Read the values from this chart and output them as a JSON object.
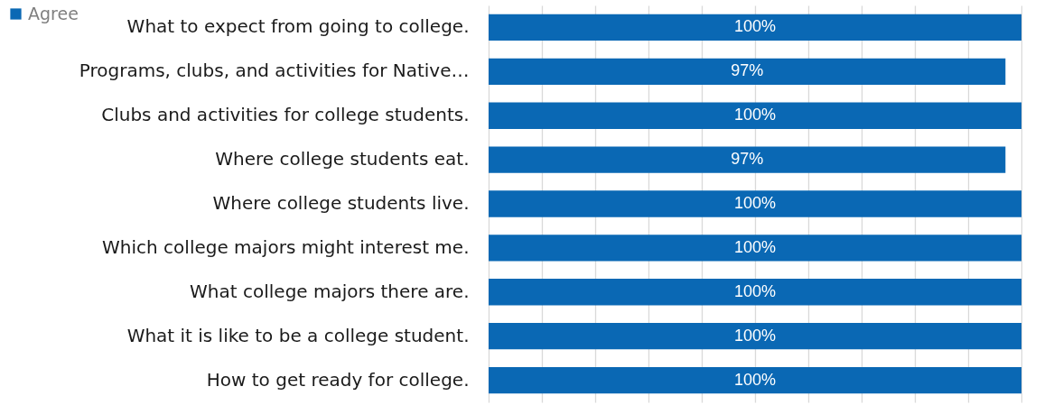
{
  "chart_data": {
    "type": "bar",
    "orientation": "horizontal",
    "categories": [
      "What to expect from going to college.",
      "Programs, clubs, and activities for Native…",
      "Clubs and activities for college students.",
      "Where college students eat.",
      "Where college students live.",
      "Which college majors might interest me.",
      "What college majors there are.",
      "What it is like to be a college student.",
      "How to get ready for college."
    ],
    "series": [
      {
        "name": "Agree",
        "color": "#0a68b4",
        "values": [
          100,
          97,
          100,
          97,
          100,
          100,
          100,
          100,
          100
        ],
        "value_labels": [
          "100%",
          "97%",
          "100%",
          "97%",
          "100%",
          "100%",
          "100%",
          "100%",
          "100%"
        ]
      }
    ],
    "xlim": [
      0,
      100
    ],
    "xticks": [
      {
        "value": 0,
        "label": null
      },
      {
        "value": 10,
        "label": null
      },
      {
        "value": 20,
        "label": null
      },
      {
        "value": 30,
        "label": null
      },
      {
        "value": 40,
        "label": null
      },
      {
        "value": 50,
        "label": null
      },
      {
        "value": 60,
        "label": null
      },
      {
        "value": 70,
        "label": null
      },
      {
        "value": 80,
        "label": null
      },
      {
        "value": 90,
        "label": null
      },
      {
        "value": 100,
        "label": null
      }
    ],
    "tick_labels": "y",
    "grid": "x",
    "legend": "left"
  }
}
